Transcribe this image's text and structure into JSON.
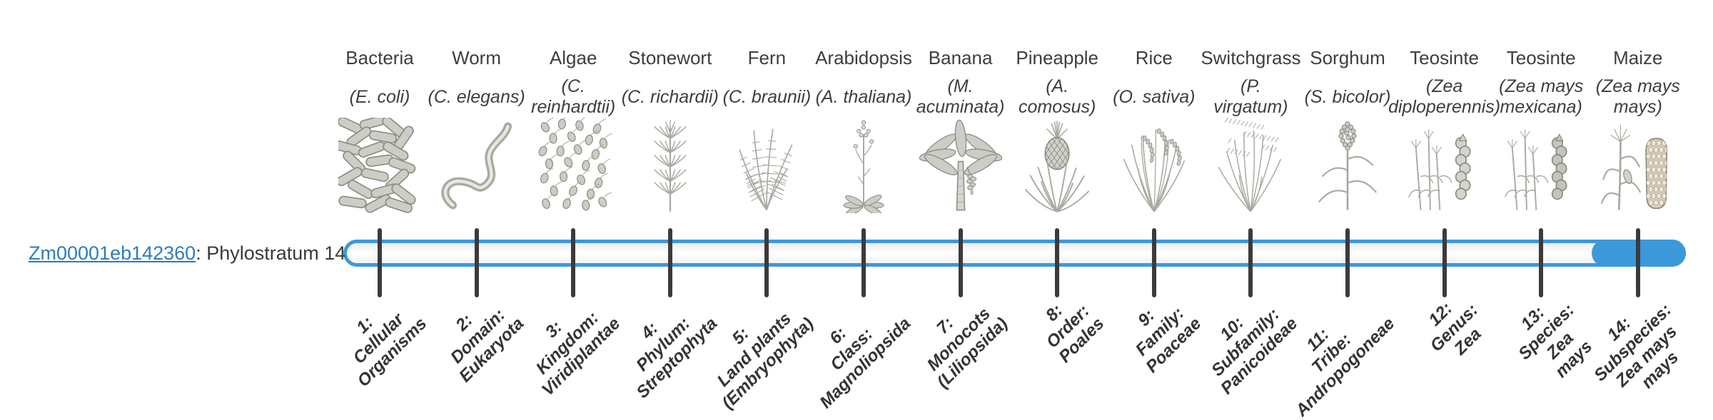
{
  "gene": {
    "id": "Zm00001eb142360",
    "suffix": ": Phylostratum 14",
    "link_color": "#2d7cbf"
  },
  "timeline": {
    "bar_border_color": "#3b99da",
    "highlight_color": "#3b99da",
    "tick_color": "#3b3b3b",
    "highlighted_stratum": 14
  },
  "organisms": [
    {
      "common_name": "Bacteria",
      "species": "(E. coli)",
      "icon": "bacteria-icon",
      "stratum_label": "1:\nCellular\nOrganisms"
    },
    {
      "common_name": "Worm",
      "species": "(C. elegans)",
      "icon": "worm-icon",
      "stratum_label": "2:\nDomain:\nEukaryota"
    },
    {
      "common_name": "Algae",
      "species": "(C.\nreinhardtii)",
      "icon": "algae-icon",
      "stratum_label": "3:\nKingdom:\nViridiplantae"
    },
    {
      "common_name": "Stonewort",
      "species": "(C. richardii)",
      "icon": "stonewort-icon",
      "stratum_label": "4:\nPhylum:\nStreptophyta"
    },
    {
      "common_name": "Fern",
      "species": "(C. braunii)",
      "icon": "fern-icon",
      "stratum_label": "5:\nLand plants\n(Embryophyta)"
    },
    {
      "common_name": "Arabidopsis",
      "species": "(A. thaliana)",
      "icon": "arabidopsis-icon",
      "stratum_label": "6:\nClass:\nMagnoliopsida"
    },
    {
      "common_name": "Banana",
      "species": "(M.\nacuminata)",
      "icon": "banana-icon",
      "stratum_label": "7:\nMonocots\n(Liliopsida)"
    },
    {
      "common_name": "Pineapple",
      "species": "(A.\ncomosus)",
      "icon": "pineapple-icon",
      "stratum_label": "8:\nOrder:\nPoales"
    },
    {
      "common_name": "Rice",
      "species": "(O. sativa)",
      "icon": "rice-icon",
      "stratum_label": "9:\nFamily:\nPoaceae"
    },
    {
      "common_name": "Switchgrass",
      "species": "(P.\nvirgatum)",
      "icon": "switchgrass-icon",
      "stratum_label": "10:\nSubfamily:\nPanicoideae"
    },
    {
      "common_name": "Sorghum",
      "species": "(S. bicolor)",
      "icon": "sorghum-icon",
      "stratum_label": "11:\nTribe:\nAndropogoneae"
    },
    {
      "common_name": "Teosinte",
      "species": "(Zea\ndiploperennis)",
      "icon": "teosinte-diploperennis-icon",
      "stratum_label": "12:\nGenus:\nZea"
    },
    {
      "common_name": "Teosinte",
      "species": "(Zea mays\nmexicana)",
      "icon": "teosinte-mexicana-icon",
      "stratum_label": "13:\nSpecies:\nZea\nmays"
    },
    {
      "common_name": "Maize",
      "species": "(Zea mays\nmays)",
      "icon": "maize-icon",
      "stratum_label": "14:\nSubspecies:\nZea mays\nmays"
    }
  ]
}
